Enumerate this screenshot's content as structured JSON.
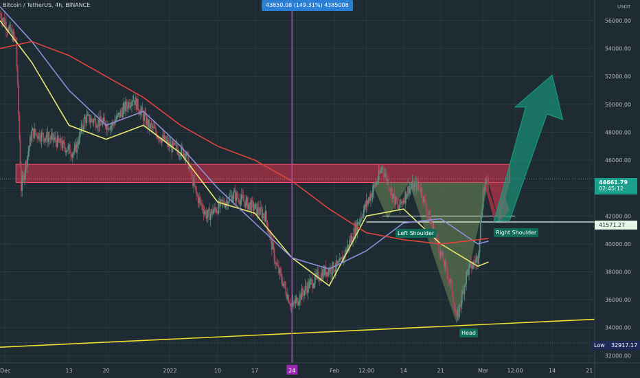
{
  "header": {
    "symbol_title": "Bitcoin / TetherUS, 4h, BINANCE"
  },
  "crosshair": {
    "tooltip": "43850.08 (149.31%) 4385008"
  },
  "price_axis": {
    "currency": "USDT",
    "ticks": [
      "56000.00",
      "54000.00",
      "52000.00",
      "50000.00",
      "48000.00",
      "46000.00",
      "44000.00",
      "42000.00",
      "40000.00",
      "38000.00",
      "36000.00",
      "34000.00",
      "32000.00"
    ],
    "last_price": "44661.79",
    "countdown": "02:45:12",
    "neckline_price": "41571.27",
    "low_label": "Low",
    "low_price": "32917.17",
    "last_price_color": "#1aa08c",
    "low_color": "#1e2a5a"
  },
  "time_axis": {
    "ticks": [
      "Dec",
      "13",
      "20",
      "2022",
      "10",
      "17",
      "24",
      "Feb",
      "12:00",
      "14",
      "21",
      "Mar",
      "12:00",
      "14",
      "21"
    ],
    "highlight": "24"
  },
  "pattern_labels": {
    "left_shoulder": "Left Shoulder",
    "head": "Head",
    "right_shoulder": "Right Shoulder"
  },
  "chart_data": {
    "type": "candlestick",
    "symbol": "BTCUSDT",
    "timeframe": "4h",
    "exchange": "BINANCE",
    "y_range": [
      31500,
      57500
    ],
    "x_range": [
      "2021-11-30",
      "2022-03-22"
    ],
    "series": [
      {
        "name": "price",
        "x": [
          "2021-11-30",
          "2021-12-03",
          "2021-12-04",
          "2021-12-06",
          "2021-12-10",
          "2021-12-14",
          "2021-12-16",
          "2021-12-21",
          "2021-12-25",
          "2021-12-28",
          "2022-01-01",
          "2022-01-04",
          "2022-01-06",
          "2022-01-08",
          "2022-01-13",
          "2022-01-16",
          "2022-01-19",
          "2022-01-21",
          "2022-01-24",
          "2022-01-27",
          "2022-01-30",
          "2022-02-02",
          "2022-02-06",
          "2022-02-09",
          "2022-02-10",
          "2022-02-13",
          "2022-02-15",
          "2022-02-17",
          "2022-02-20",
          "2022-02-23",
          "2022-02-24",
          "2022-02-26",
          "2022-02-28",
          "2022-03-01",
          "2022-03-02"
        ],
        "values": [
          56500,
          54500,
          44000,
          48000,
          47500,
          46500,
          49000,
          48500,
          50500,
          48500,
          47000,
          46500,
          43500,
          42000,
          43500,
          42800,
          42000,
          38500,
          35500,
          37000,
          38000,
          38500,
          42000,
          44500,
          45500,
          42500,
          44000,
          44200,
          40500,
          37000,
          34500,
          38000,
          39000,
          43800,
          44662
        ]
      },
      {
        "name": "yellow-ma",
        "x": [
          "2021-11-30",
          "2021-12-06",
          "2021-12-13",
          "2021-12-20",
          "2021-12-27",
          "2022-01-03",
          "2022-01-10",
          "2022-01-17",
          "2022-01-24",
          "2022-01-31",
          "2022-02-07",
          "2022-02-14",
          "2022-02-21",
          "2022-02-28",
          "2022-03-02"
        ],
        "values": [
          56000,
          53000,
          48500,
          47500,
          48500,
          46500,
          43000,
          42200,
          39000,
          37000,
          42000,
          42500,
          40000,
          38400,
          38700
        ]
      },
      {
        "name": "blue-ma",
        "x": [
          "2021-11-30",
          "2021-12-06",
          "2021-12-13",
          "2021-12-20",
          "2021-12-27",
          "2022-01-03",
          "2022-01-10",
          "2022-01-17",
          "2022-01-24",
          "2022-01-31",
          "2022-02-07",
          "2022-02-14",
          "2022-02-21",
          "2022-02-28",
          "2022-03-02"
        ],
        "values": [
          57000,
          54500,
          51000,
          48500,
          49500,
          47000,
          44000,
          41500,
          39000,
          38200,
          39500,
          41500,
          41800,
          40000,
          40200
        ]
      },
      {
        "name": "red-ma",
        "x": [
          "2021-11-30",
          "2021-12-06",
          "2021-12-13",
          "2021-12-20",
          "2021-12-27",
          "2022-01-03",
          "2022-01-10",
          "2022-01-17",
          "2022-01-24",
          "2022-01-31",
          "2022-02-07",
          "2022-02-14",
          "2022-02-21",
          "2022-02-28",
          "2022-03-02"
        ],
        "values": [
          54000,
          54500,
          53500,
          52000,
          50500,
          48500,
          47000,
          46000,
          44500,
          42500,
          40800,
          40300,
          40000,
          40300,
          40400
        ]
      }
    ],
    "support_zone": [
      44400,
      45700
    ],
    "neckline": 41571.27,
    "trendline": [
      [
        "2021-11-30",
        32600
      ],
      [
        "2022-03-22",
        34600
      ]
    ],
    "crosshair_date": "2022-01-24"
  }
}
